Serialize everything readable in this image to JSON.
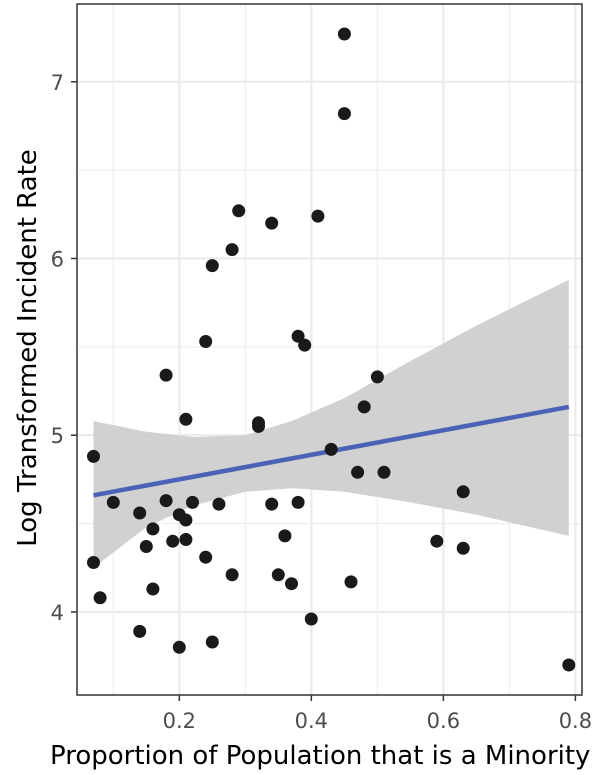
{
  "chart_data": {
    "type": "scatter",
    "title": "",
    "xlabel": "Proportion of Population that is a Minority",
    "ylabel": "Log Transformed Incident Rate",
    "xlim": [
      0.045,
      0.81
    ],
    "ylim": [
      3.53,
      7.44
    ],
    "x_ticks": [
      0.2,
      0.4,
      0.6,
      0.8
    ],
    "x_tick_labels": [
      "0.2",
      "0.4",
      "0.6",
      "0.8"
    ],
    "y_ticks": [
      4,
      5,
      6,
      7
    ],
    "y_tick_labels": [
      "4",
      "5",
      "6",
      "7"
    ],
    "grid": true,
    "points": [
      {
        "x": 0.45,
        "y": 7.27
      },
      {
        "x": 0.45,
        "y": 6.82
      },
      {
        "x": 0.29,
        "y": 6.27
      },
      {
        "x": 0.34,
        "y": 6.2
      },
      {
        "x": 0.41,
        "y": 6.24
      },
      {
        "x": 0.28,
        "y": 6.05
      },
      {
        "x": 0.25,
        "y": 5.96
      },
      {
        "x": 0.24,
        "y": 5.53
      },
      {
        "x": 0.38,
        "y": 5.56
      },
      {
        "x": 0.39,
        "y": 5.51
      },
      {
        "x": 0.18,
        "y": 5.34
      },
      {
        "x": 0.5,
        "y": 5.33
      },
      {
        "x": 0.48,
        "y": 5.16
      },
      {
        "x": 0.21,
        "y": 5.09
      },
      {
        "x": 0.32,
        "y": 5.07
      },
      {
        "x": 0.32,
        "y": 5.05
      },
      {
        "x": 0.43,
        "y": 4.92
      },
      {
        "x": 0.07,
        "y": 4.88
      },
      {
        "x": 0.47,
        "y": 4.79
      },
      {
        "x": 0.51,
        "y": 4.79
      },
      {
        "x": 0.63,
        "y": 4.68
      },
      {
        "x": 0.18,
        "y": 4.63
      },
      {
        "x": 0.1,
        "y": 4.62
      },
      {
        "x": 0.22,
        "y": 4.62
      },
      {
        "x": 0.38,
        "y": 4.62
      },
      {
        "x": 0.26,
        "y": 4.61
      },
      {
        "x": 0.34,
        "y": 4.61
      },
      {
        "x": 0.14,
        "y": 4.56
      },
      {
        "x": 0.2,
        "y": 4.55
      },
      {
        "x": 0.21,
        "y": 4.52
      },
      {
        "x": 0.16,
        "y": 4.47
      },
      {
        "x": 0.36,
        "y": 4.43
      },
      {
        "x": 0.19,
        "y": 4.4
      },
      {
        "x": 0.21,
        "y": 4.41
      },
      {
        "x": 0.59,
        "y": 4.4
      },
      {
        "x": 0.15,
        "y": 4.37
      },
      {
        "x": 0.63,
        "y": 4.36
      },
      {
        "x": 0.24,
        "y": 4.31
      },
      {
        "x": 0.07,
        "y": 4.28
      },
      {
        "x": 0.28,
        "y": 4.21
      },
      {
        "x": 0.35,
        "y": 4.21
      },
      {
        "x": 0.46,
        "y": 4.17
      },
      {
        "x": 0.37,
        "y": 4.16
      },
      {
        "x": 0.16,
        "y": 4.13
      },
      {
        "x": 0.08,
        "y": 4.08
      },
      {
        "x": 0.4,
        "y": 3.96
      },
      {
        "x": 0.14,
        "y": 3.89
      },
      {
        "x": 0.25,
        "y": 3.83
      },
      {
        "x": 0.2,
        "y": 3.8
      },
      {
        "x": 0.79,
        "y": 3.7
      }
    ],
    "trend_line": {
      "x": [
        0.07,
        0.79
      ],
      "y": [
        4.66,
        5.16
      ]
    },
    "confidence_band": {
      "x": [
        0.07,
        0.15,
        0.22,
        0.3,
        0.37,
        0.45,
        0.55,
        0.65,
        0.79
      ],
      "lower": [
        4.25,
        4.48,
        4.6,
        4.68,
        4.7,
        4.68,
        4.62,
        4.55,
        4.43
      ],
      "upper": [
        5.08,
        5.02,
        4.99,
        5.0,
        5.08,
        5.21,
        5.42,
        5.62,
        5.88
      ]
    },
    "colors": {
      "points": "#1a1a1a",
      "trend_line": "#4a63b6",
      "confidence_band": "#cccccc",
      "grid": "#ebebeb",
      "axis_text": "#4d4d4d"
    }
  }
}
